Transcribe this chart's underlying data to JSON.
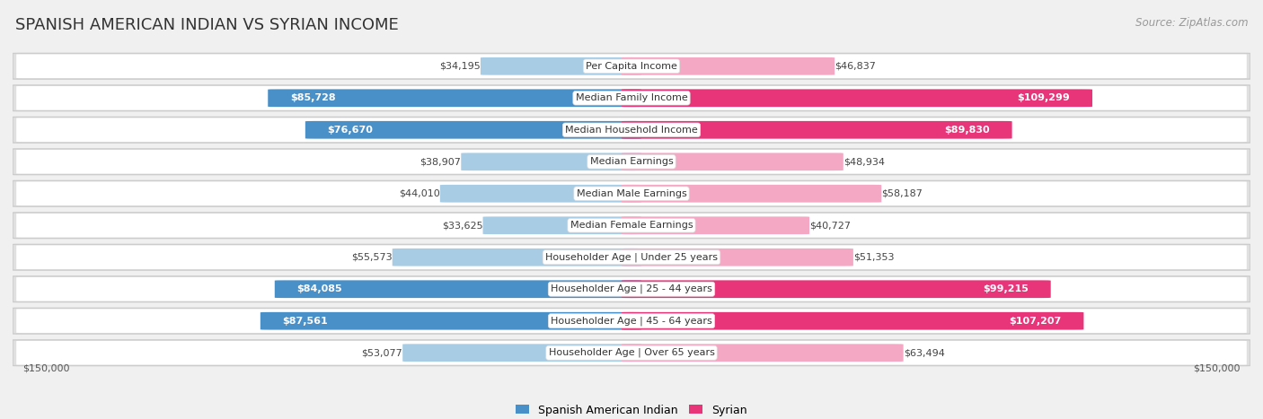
{
  "title": "SPANISH AMERICAN INDIAN VS SYRIAN INCOME",
  "source": "Source: ZipAtlas.com",
  "categories": [
    "Per Capita Income",
    "Median Family Income",
    "Median Household Income",
    "Median Earnings",
    "Median Male Earnings",
    "Median Female Earnings",
    "Householder Age | Under 25 years",
    "Householder Age | 25 - 44 years",
    "Householder Age | 45 - 64 years",
    "Householder Age | Over 65 years"
  ],
  "left_values": [
    34195,
    85728,
    76670,
    38907,
    44010,
    33625,
    55573,
    84085,
    87561,
    53077
  ],
  "right_values": [
    46837,
    109299,
    89830,
    48934,
    58187,
    40727,
    51353,
    99215,
    107207,
    63494
  ],
  "left_labels": [
    "$34,195",
    "$85,728",
    "$76,670",
    "$38,907",
    "$44,010",
    "$33,625",
    "$55,573",
    "$84,085",
    "$87,561",
    "$53,077"
  ],
  "right_labels": [
    "$46,837",
    "$109,299",
    "$89,830",
    "$48,934",
    "$58,187",
    "$40,727",
    "$51,353",
    "$99,215",
    "$107,207",
    "$63,494"
  ],
  "left_color_light": "#a8cce4",
  "left_color_dark": "#4a90c8",
  "right_color_light": "#f4a8c4",
  "right_color_dark": "#e8357a",
  "max_value": 150000,
  "legend_left": "Spanish American Indian",
  "legend_right": "Syrian",
  "bg_color": "#f0f0f0",
  "bold_threshold": 75000,
  "title_fontsize": 13,
  "source_fontsize": 8.5,
  "label_fontsize": 8,
  "value_fontsize": 8
}
